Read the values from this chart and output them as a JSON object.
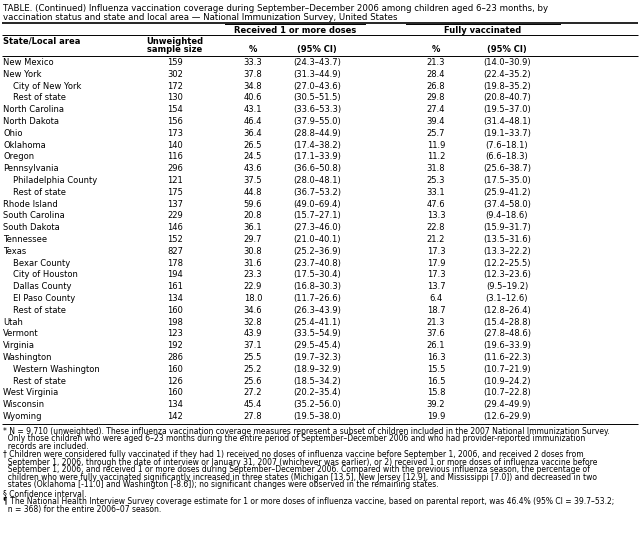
{
  "title1": "TABLE. (Continued) Influenza vaccination coverage during September–December 2006 among children aged 6–23 months, by",
  "title2": "vaccination status and state and local area — National Immunization Survey, United States",
  "col_group1": "Received 1 or more doses",
  "col_group2": "Fully vaccinated",
  "rows": [
    [
      "New Mexico",
      "159",
      "33.3",
      "(24.3–43.7)",
      "21.3",
      "(14.0–30.9)"
    ],
    [
      "New York",
      "302",
      "37.8",
      "(31.3–44.9)",
      "28.4",
      "(22.4–35.2)"
    ],
    [
      " City of New York",
      "172",
      "34.8",
      "(27.0–43.6)",
      "26.8",
      "(19.8–35.2)"
    ],
    [
      " Rest of state",
      "130",
      "40.6",
      "(30.5–51.5)",
      "29.8",
      "(20.8–40.7)"
    ],
    [
      "North Carolina",
      "154",
      "43.1",
      "(33.6–53.3)",
      "27.4",
      "(19.5–37.0)"
    ],
    [
      "North Dakota",
      "156",
      "46.4",
      "(37.9–55.0)",
      "39.4",
      "(31.4–48.1)"
    ],
    [
      "Ohio",
      "173",
      "36.4",
      "(28.8–44.9)",
      "25.7",
      "(19.1–33.7)"
    ],
    [
      "Oklahoma",
      "140",
      "26.5",
      "(17.4–38.2)",
      "11.9",
      "(7.6–18.1)"
    ],
    [
      "Oregon",
      "116",
      "24.5",
      "(17.1–33.9)",
      "11.2",
      "(6.6–18.3)"
    ],
    [
      "Pennsylvania",
      "296",
      "43.6",
      "(36.6–50.8)",
      "31.8",
      "(25.6–38.7)"
    ],
    [
      " Philadelphia County",
      "121",
      "37.5",
      "(28.0–48.1)",
      "25.3",
      "(17.5–35.0)"
    ],
    [
      " Rest of state",
      "175",
      "44.8",
      "(36.7–53.2)",
      "33.1",
      "(25.9–41.2)"
    ],
    [
      "Rhode Island",
      "137",
      "59.6",
      "(49.0–69.4)",
      "47.6",
      "(37.4–58.0)"
    ],
    [
      "South Carolina",
      "229",
      "20.8",
      "(15.7–27.1)",
      "13.3",
      "(9.4–18.6)"
    ],
    [
      "South Dakota",
      "146",
      "36.1",
      "(27.3–46.0)",
      "22.8",
      "(15.9–31.7)"
    ],
    [
      "Tennessee",
      "152",
      "29.7",
      "(21.0–40.1)",
      "21.2",
      "(13.5–31.6)"
    ],
    [
      "Texas",
      "827",
      "30.8",
      "(25.2–36.9)",
      "17.3",
      "(13.3–22.2)"
    ],
    [
      " Bexar County",
      "178",
      "31.6",
      "(23.7–40.8)",
      "17.9",
      "(12.2–25.5)"
    ],
    [
      " City of Houston",
      "194",
      "23.3",
      "(17.5–30.4)",
      "17.3",
      "(12.3–23.6)"
    ],
    [
      " Dallas County",
      "161",
      "22.9",
      "(16.8–30.3)",
      "13.7",
      "(9.5–19.2)"
    ],
    [
      " El Paso County",
      "134",
      "18.0",
      "(11.7–26.6)",
      "6.4",
      "(3.1–12.6)"
    ],
    [
      " Rest of state",
      "160",
      "34.6",
      "(26.3–43.9)",
      "18.7",
      "(12.8–26.4)"
    ],
    [
      "Utah",
      "198",
      "32.8",
      "(25.4–41.1)",
      "21.3",
      "(15.4–28.8)"
    ],
    [
      "Vermont",
      "123",
      "43.9",
      "(33.5–54.9)",
      "37.6",
      "(27.8–48.6)"
    ],
    [
      "Virginia",
      "192",
      "37.1",
      "(29.5–45.4)",
      "26.1",
      "(19.6–33.9)"
    ],
    [
      "Washington",
      "286",
      "25.5",
      "(19.7–32.3)",
      "16.3",
      "(11.6–22.3)"
    ],
    [
      " Western Washington",
      "160",
      "25.2",
      "(18.9–32.9)",
      "15.5",
      "(10.7–21.9)"
    ],
    [
      " Rest of state",
      "126",
      "25.6",
      "(18.5–34.2)",
      "16.5",
      "(10.9–24.2)"
    ],
    [
      "West Virginia",
      "160",
      "27.2",
      "(20.2–35.4)",
      "15.8",
      "(10.7–22.8)"
    ],
    [
      "Wisconsin",
      "134",
      "45.4",
      "(35.2–56.0)",
      "39.2",
      "(29.4–49.9)"
    ],
    [
      "Wyoming",
      "142",
      "27.8",
      "(19.5–38.0)",
      "19.9",
      "(12.6–29.9)"
    ]
  ],
  "footnotes": [
    "* N = 9,710 (unweighted). These influenza vaccination coverage measures represent a subset of children included in the 2007 National Immunization Survey.\n  Only those children who were aged 6–23 months during the entire period of September–December 2006 and who had provider-reported immunization\n  records are included.",
    "† Children were considered fully vaccinated if they had 1) received no doses of influenza vaccine before September 1, 2006, and received 2 doses from\n  September 1, 2006, through the date of interview or January 31, 2007 (whichever was earlier), or 2) received 1 or more doses of influenza vaccine before\n  September 1, 2006, and received 1 or more doses during September–December 2006. Compared with the previous influenza season, the percentage of\n  children who were fully vaccinated significantly increased in three states (Michigan [13.5], New Jersey [12.9], and Mississippi [7.0]) and decreased in two\n  states (Oklahoma [-11.0] and Washington [-8.6]); no significant changes were observed in the remaining states.",
    "§ Confidence interval.",
    "¶ The National Health Interview Survey coverage estimate for 1 or more doses of influenza vaccine, based on parental report, was 46.4% (95% CI = 39.7–53.2;\n  n = 368) for the entire 2006–07 season."
  ],
  "bg_color": "#FFFFFF",
  "text_color": "#000000"
}
